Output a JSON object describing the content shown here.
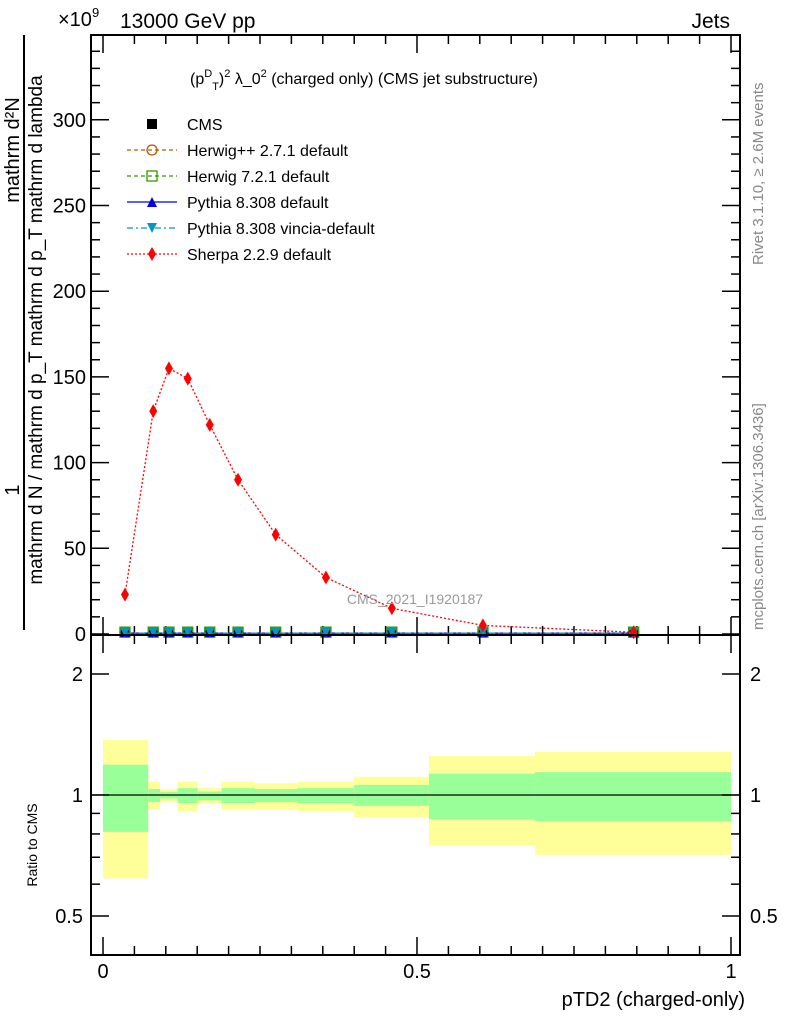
{
  "header": {
    "left": "13000 GeV pp",
    "right": "Jets",
    "exponent_base": "×10",
    "exponent_power": "9"
  },
  "side_labels": {
    "rivet": "Rivet 3.1.10, ≥ 2.6M events",
    "mcplots": "mcplots.cern.ch [arXiv:1306.3436]"
  },
  "watermark": "CMS_2021_I1920187",
  "chart_data": [
    {
      "type": "line",
      "title_pre": "(p",
      "title_sup": "D",
      "title_sub": "T",
      "title_post": ")",
      "title_sup2": "2",
      "title_main": " λ_0",
      "title_sup3": "2",
      "title_tail": " (charged only) (CMS jet substructure)",
      "ylabel_numerator_top": "mathrm d²N",
      "ylabel_numerator_one": "1",
      "ylabel_denominator": "mathrm d N / mathrm d p_T mathrm d p_T mathrm d lambda",
      "xlim": [
        -0.02,
        1.015
      ],
      "ylim": [
        0,
        349
      ],
      "yticks": [
        "0",
        "50",
        "100",
        "150",
        "200",
        "250",
        "300"
      ],
      "x": [
        0.035,
        0.08,
        0.105,
        0.135,
        0.17,
        0.215,
        0.275,
        0.355,
        0.46,
        0.605,
        0.845
      ],
      "series": [
        {
          "name": "CMS",
          "color": "#000000",
          "marker": "square",
          "values": [
            0.5,
            0.5,
            0.5,
            0.5,
            0.5,
            0.5,
            0.5,
            0.5,
            0.5,
            0.5,
            0.5
          ]
        },
        {
          "name": "Herwig++ 2.7.1 default",
          "color": "#b35900",
          "marker": "circle",
          "dash": "4,3",
          "values": [
            0.5,
            0.5,
            0.5,
            0.5,
            0.5,
            0.5,
            0.5,
            0.5,
            0.5,
            0.5,
            0.5
          ]
        },
        {
          "name": "Herwig 7.2.1 default",
          "color": "#339900",
          "marker": "open-square",
          "dash": "4,3",
          "values": [
            0.5,
            0.5,
            0.5,
            0.5,
            0.5,
            0.5,
            0.5,
            0.5,
            0.5,
            0.5,
            0.5
          ]
        },
        {
          "name": "Pythia 8.308 default",
          "color": "#0000dd",
          "marker": "triangle-up",
          "dash": "",
          "values": [
            0.5,
            0.5,
            0.5,
            0.5,
            0.5,
            0.5,
            0.5,
            0.5,
            0.5,
            0.5,
            0.5
          ]
        },
        {
          "name": "Pythia 8.308 vincia-default",
          "color": "#0099bb",
          "marker": "triangle-down",
          "dash": "6,3,2,3",
          "values": [
            0.5,
            0.5,
            0.5,
            0.5,
            0.5,
            0.5,
            0.5,
            0.5,
            0.5,
            0.5,
            0.5
          ]
        },
        {
          "name": "Sherpa 2.2.9 default",
          "color": "#ff0000",
          "marker": "diamond",
          "dash": "2,2",
          "values": [
            23,
            130,
            155,
            149,
            122,
            90,
            58,
            33,
            15,
            5,
            1
          ]
        }
      ]
    },
    {
      "type": "area",
      "ylabel": "Ratio to CMS",
      "xlabel": "pTD2 (charged-only)",
      "yscale": "log",
      "ylim": [
        0.4,
        2.5
      ],
      "yticks": [
        "0.5",
        "1",
        "2"
      ],
      "xticks": [
        "0",
        "0.5",
        "1"
      ],
      "bin_edges": [
        0,
        0.072,
        0.091,
        0.119,
        0.151,
        0.189,
        0.242,
        0.309,
        0.4,
        0.519,
        0.688,
        1.0
      ],
      "stat_band": {
        "color": "#99ff99",
        "upper": [
          1.19,
          1.035,
          1.017,
          1.04,
          1.02,
          1.04,
          1.035,
          1.04,
          1.06,
          1.13,
          1.14
        ],
        "lower": [
          0.81,
          0.96,
          0.98,
          0.955,
          0.97,
          0.955,
          0.96,
          0.955,
          0.94,
          0.87,
          0.86
        ]
      },
      "total_band": {
        "color": "#ffff99",
        "upper": [
          1.37,
          1.08,
          1.035,
          1.08,
          1.04,
          1.08,
          1.07,
          1.08,
          1.11,
          1.25,
          1.28
        ],
        "lower": [
          0.62,
          0.92,
          0.96,
          0.91,
          0.955,
          0.92,
          0.92,
          0.91,
          0.88,
          0.75,
          0.71
        ]
      }
    }
  ]
}
